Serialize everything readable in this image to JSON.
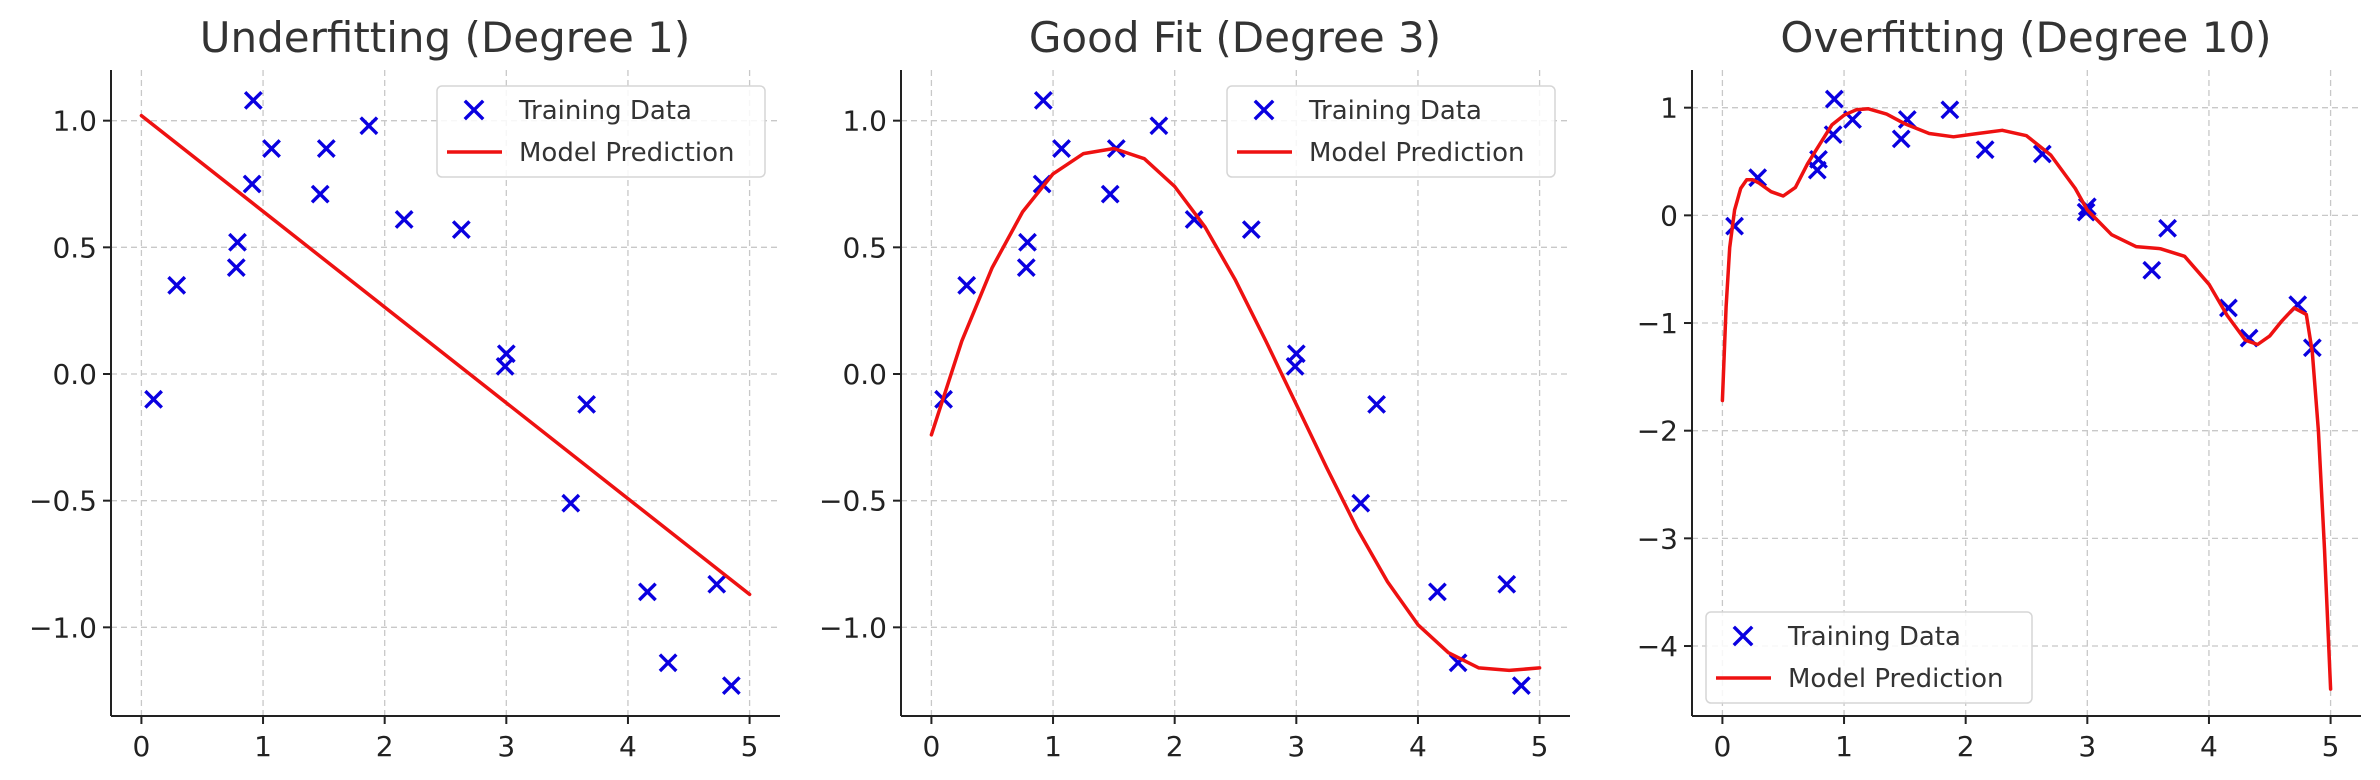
{
  "colors": {
    "training": "#0a00e0",
    "model": "#ee1111"
  },
  "chart_data": [
    {
      "type": "scatter",
      "title": "Underfitting (Degree 1)",
      "xlabel": "",
      "ylabel": "",
      "xlim": [
        -0.25,
        5.25
      ],
      "ylim": [
        -1.35,
        1.2
      ],
      "xticks": [
        0,
        1,
        2,
        3,
        4,
        5
      ],
      "xtick_labels": [
        "0",
        "1",
        "2",
        "3",
        "4",
        "5"
      ],
      "yticks": [
        -1.0,
        -0.5,
        0.0,
        0.5,
        1.0
      ],
      "ytick_labels": [
        "−1.0",
        "−0.5",
        "0.0",
        "0.5",
        "1.0"
      ],
      "grid": true,
      "legend": {
        "placement": "top-right",
        "entries": [
          "Training Data",
          "Model Prediction"
        ]
      },
      "series": [
        {
          "name": "Training Data",
          "kind": "scatter",
          "x": [
            0.1,
            0.29,
            0.79,
            0.78,
            0.92,
            0.91,
            1.07,
            1.47,
            1.52,
            1.87,
            2.16,
            2.63,
            2.99,
            3.0,
            3.53,
            3.66,
            4.16,
            4.33,
            4.73,
            4.85
          ],
          "y": [
            -0.1,
            0.35,
            0.52,
            0.42,
            1.08,
            0.75,
            0.89,
            0.71,
            0.89,
            0.98,
            0.61,
            0.57,
            0.03,
            0.08,
            -0.51,
            -0.12,
            -0.86,
            -1.14,
            -0.83,
            -1.23
          ]
        },
        {
          "name": "Model Prediction",
          "kind": "line",
          "x": [
            0,
            5
          ],
          "y": [
            1.02,
            -0.87
          ]
        }
      ]
    },
    {
      "type": "scatter",
      "title": "Good Fit (Degree 3)",
      "xlabel": "",
      "ylabel": "",
      "xlim": [
        -0.25,
        5.25
      ],
      "ylim": [
        -1.35,
        1.2
      ],
      "xticks": [
        0,
        1,
        2,
        3,
        4,
        5
      ],
      "xtick_labels": [
        "0",
        "1",
        "2",
        "3",
        "4",
        "5"
      ],
      "yticks": [
        -1.0,
        -0.5,
        0.0,
        0.5,
        1.0
      ],
      "ytick_labels": [
        "−1.0",
        "−0.5",
        "0.0",
        "0.5",
        "1.0"
      ],
      "grid": true,
      "legend": {
        "placement": "top-right",
        "entries": [
          "Training Data",
          "Model Prediction"
        ]
      },
      "series": [
        {
          "name": "Training Data",
          "kind": "scatter",
          "x": [
            0.1,
            0.29,
            0.79,
            0.78,
            0.92,
            0.91,
            1.07,
            1.47,
            1.52,
            1.87,
            2.16,
            2.63,
            2.99,
            3.0,
            3.53,
            3.66,
            4.16,
            4.33,
            4.73,
            4.85
          ],
          "y": [
            -0.1,
            0.35,
            0.52,
            0.42,
            1.08,
            0.75,
            0.89,
            0.71,
            0.89,
            0.98,
            0.61,
            0.57,
            0.03,
            0.08,
            -0.51,
            -0.12,
            -0.86,
            -1.14,
            -0.83,
            -1.23
          ]
        },
        {
          "name": "Model Prediction",
          "kind": "line",
          "x": [
            0.0,
            0.25,
            0.5,
            0.75,
            1.0,
            1.25,
            1.5,
            1.75,
            2.0,
            2.25,
            2.5,
            2.75,
            3.0,
            3.25,
            3.5,
            3.75,
            4.0,
            4.25,
            4.5,
            4.75,
            5.0
          ],
          "y": [
            -0.24,
            0.13,
            0.42,
            0.64,
            0.79,
            0.87,
            0.89,
            0.85,
            0.74,
            0.58,
            0.37,
            0.13,
            -0.12,
            -0.37,
            -0.61,
            -0.82,
            -0.99,
            -1.1,
            -1.16,
            -1.17,
            -1.16
          ]
        }
      ]
    },
    {
      "type": "scatter",
      "title": "Overfitting (Degree 10)",
      "xlabel": "",
      "ylabel": "",
      "xlim": [
        -0.25,
        5.25
      ],
      "ylim": [
        -4.65,
        1.35
      ],
      "xticks": [
        0,
        1,
        2,
        3,
        4,
        5
      ],
      "xtick_labels": [
        "0",
        "1",
        "2",
        "3",
        "4",
        "5"
      ],
      "yticks": [
        -4,
        -3,
        -2,
        -1,
        0,
        1
      ],
      "ytick_labels": [
        "−4",
        "−3",
        "−2",
        "−1",
        "0",
        "1"
      ],
      "grid": true,
      "legend": {
        "placement": "bottom-left",
        "entries": [
          "Training Data",
          "Model Prediction"
        ]
      },
      "series": [
        {
          "name": "Training Data",
          "kind": "scatter",
          "x": [
            0.1,
            0.29,
            0.79,
            0.78,
            0.92,
            0.91,
            1.07,
            1.47,
            1.52,
            1.87,
            2.16,
            2.63,
            2.99,
            3.0,
            3.53,
            3.66,
            4.16,
            4.33,
            4.73,
            4.85
          ],
          "y": [
            -0.1,
            0.35,
            0.52,
            0.42,
            1.08,
            0.75,
            0.89,
            0.71,
            0.89,
            0.98,
            0.61,
            0.57,
            0.03,
            0.08,
            -0.51,
            -0.12,
            -0.86,
            -1.14,
            -0.83,
            -1.23
          ]
        },
        {
          "name": "Model Prediction",
          "kind": "line",
          "x": [
            0.0,
            0.03,
            0.06,
            0.1,
            0.15,
            0.2,
            0.25,
            0.3,
            0.4,
            0.5,
            0.6,
            0.7,
            0.8,
            0.9,
            1.0,
            1.1,
            1.2,
            1.35,
            1.5,
            1.7,
            1.9,
            2.1,
            2.3,
            2.5,
            2.7,
            2.9,
            3.0,
            3.2,
            3.4,
            3.6,
            3.8,
            4.0,
            4.15,
            4.3,
            4.4,
            4.5,
            4.6,
            4.7,
            4.8,
            4.85,
            4.9,
            4.95,
            5.0
          ],
          "y": [
            -1.72,
            -0.85,
            -0.3,
            0.05,
            0.25,
            0.33,
            0.33,
            0.3,
            0.22,
            0.18,
            0.26,
            0.48,
            0.66,
            0.84,
            0.93,
            0.98,
            0.99,
            0.94,
            0.85,
            0.76,
            0.73,
            0.76,
            0.79,
            0.74,
            0.56,
            0.25,
            0.05,
            -0.18,
            -0.29,
            -0.31,
            -0.38,
            -0.64,
            -0.93,
            -1.16,
            -1.2,
            -1.12,
            -0.98,
            -0.86,
            -0.92,
            -1.27,
            -2.0,
            -3.1,
            -4.4
          ]
        }
      ]
    }
  ]
}
